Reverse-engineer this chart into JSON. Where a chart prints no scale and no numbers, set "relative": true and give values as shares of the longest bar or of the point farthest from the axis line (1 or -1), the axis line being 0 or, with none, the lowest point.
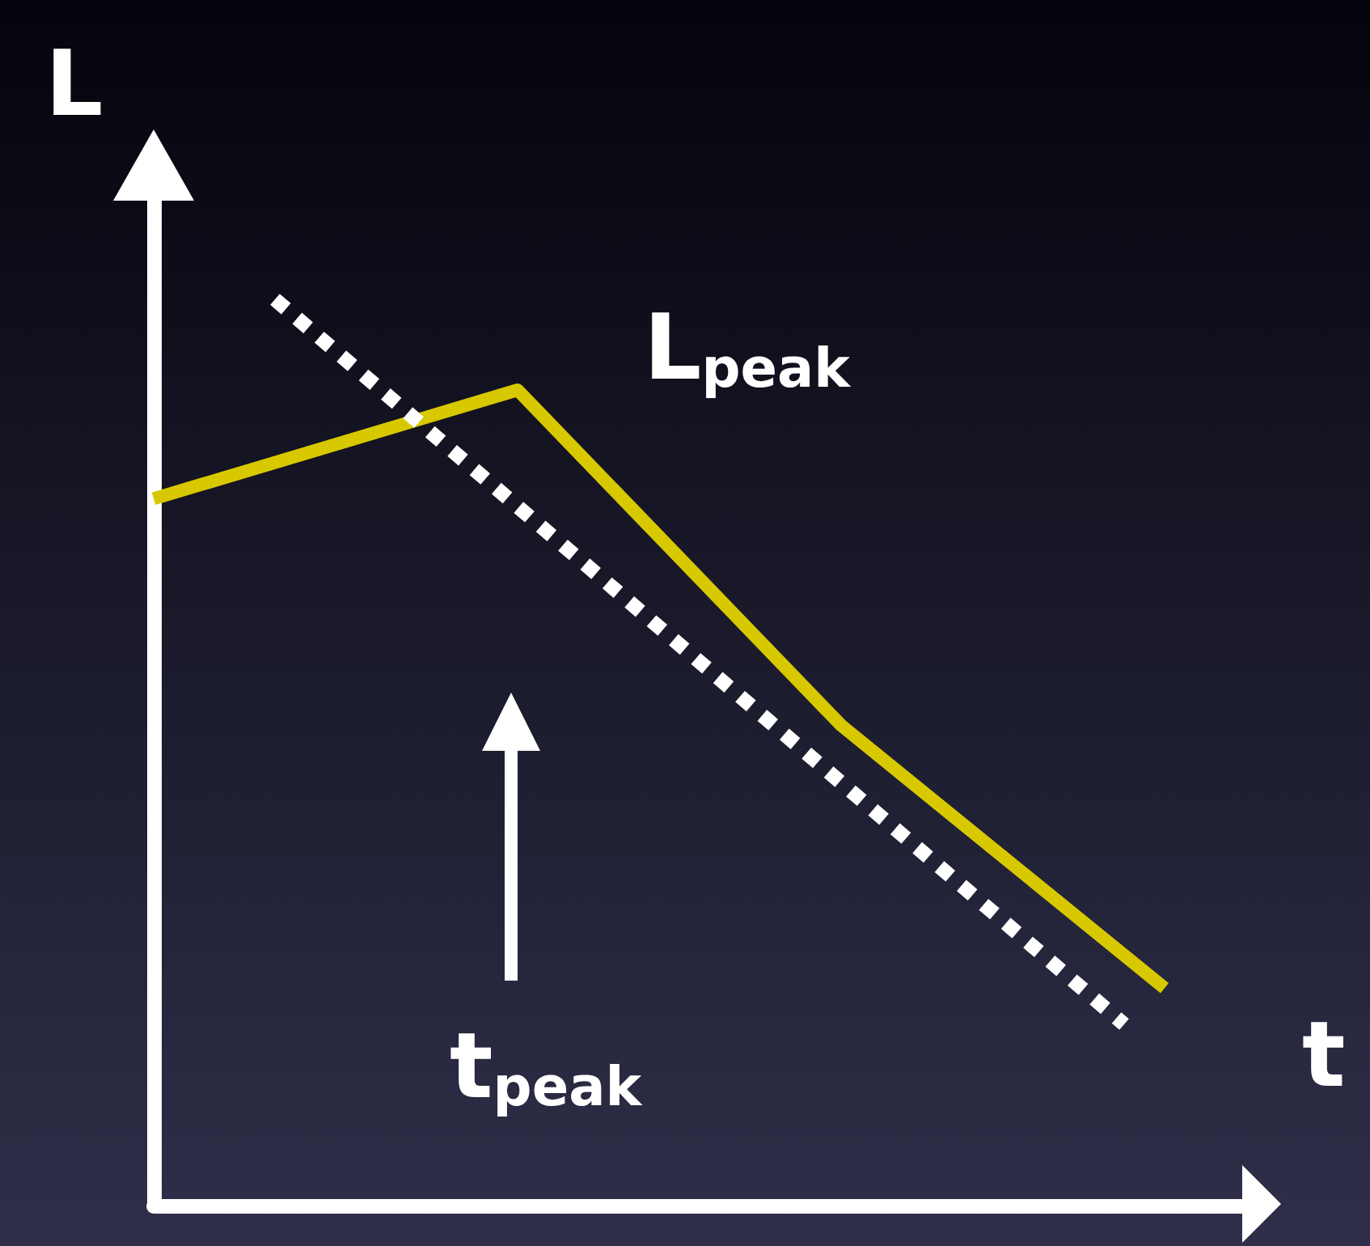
{
  "chart_data": {
    "type": "line",
    "relative": true,
    "xlabel": "t",
    "ylabel": "L",
    "categories": [
      null,
      null,
      null,
      null,
      null,
      null,
      null,
      null,
      null,
      null,
      null,
      null,
      null,
      null,
      null,
      null,
      null,
      null,
      null,
      null,
      null,
      null,
      null,
      null,
      null,
      null,
      null,
      null
    ],
    "series": [
      {
        "color": "#d8c800",
        "line_style": "solid",
        "values": [
          0.78,
          null,
          null,
          null,
          null,
          null,
          null,
          null,
          null,
          0.9,
          null,
          null,
          null,
          null,
          null,
          null,
          null,
          0.53,
          null,
          null,
          null,
          null,
          null,
          null,
          null,
          0.24,
          null,
          null
        ]
      },
      {
        "color": "#ffffff",
        "line_style": "dotted",
        "values": [
          null,
          null,
          null,
          1,
          null,
          null,
          null,
          null,
          null,
          null,
          null,
          null,
          null,
          null,
          null,
          null,
          null,
          null,
          null,
          null,
          null,
          null,
          null,
          null,
          0.2,
          null,
          null,
          null
        ]
      }
    ],
    "annotations": [
      "L$_{peak}$",
      "t$_{peak}$"
    ],
    "marker": "none",
    "grid": false
  }
}
